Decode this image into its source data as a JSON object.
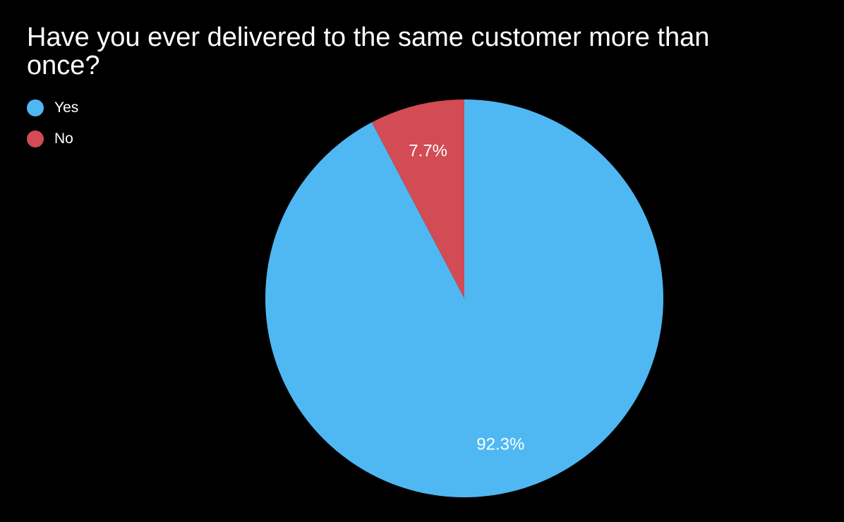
{
  "chart_data": {
    "type": "pie",
    "title": "Have you ever delivered to the same customer more than once?",
    "slices": [
      {
        "label": "Yes",
        "value": 92.3,
        "display": "92.3%",
        "color": "#4FB8F2"
      },
      {
        "label": "No",
        "value": 7.7,
        "display": "7.7%",
        "color": "#D24B55"
      }
    ],
    "legend_position": "top-left",
    "start_angle": "12 o'clock",
    "direction": "clockwise"
  }
}
